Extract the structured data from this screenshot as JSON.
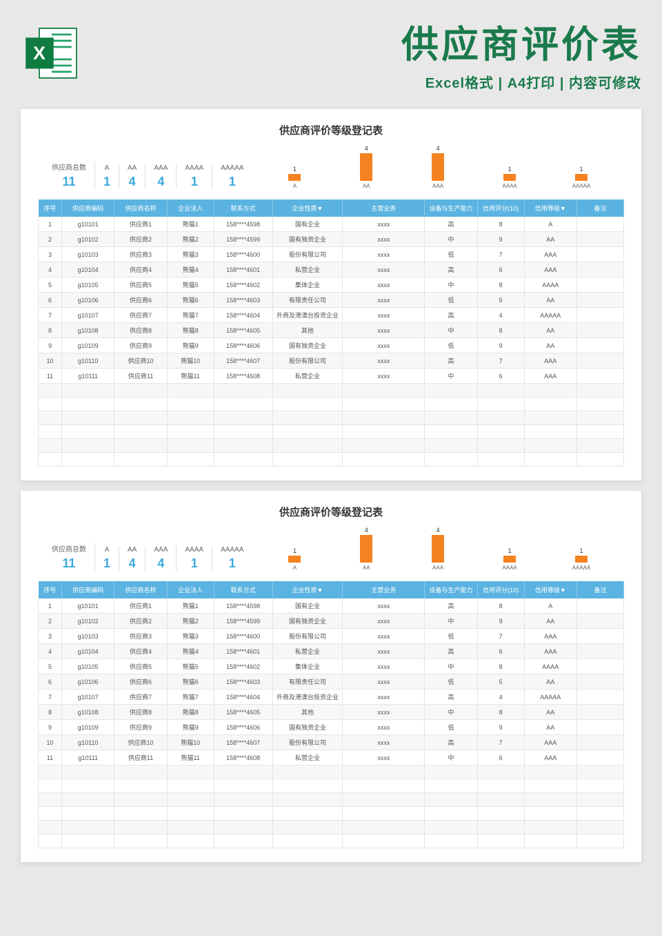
{
  "header": {
    "title": "供应商评价表",
    "subtitle": "Excel格式 | A4打印 | 内容可修改",
    "title_color": "#1a7a4c",
    "icon_color_dark": "#107c41",
    "icon_color_light": "#21a366"
  },
  "sheet": {
    "title": "供应商评价等级登记表",
    "summary": {
      "total_label": "供应商总数",
      "total_value": "11",
      "levels": [
        {
          "label": "A",
          "value": "1"
        },
        {
          "label": "AA",
          "value": "4"
        },
        {
          "label": "AAA",
          "value": "4"
        },
        {
          "label": "AAAA",
          "value": "1"
        },
        {
          "label": "AAAAA",
          "value": "1"
        }
      ],
      "value_color": "#3ba9de"
    },
    "chart": {
      "type": "bar",
      "bar_color": "#f58220",
      "max_value": 4,
      "bars": [
        {
          "label": "A",
          "value": 1
        },
        {
          "label": "AA",
          "value": 4
        },
        {
          "label": "AAA",
          "value": 4
        },
        {
          "label": "AAAA",
          "value": 1
        },
        {
          "label": "AAAAA",
          "value": 1
        }
      ]
    },
    "table": {
      "header_bg": "#5ab3e0",
      "columns": [
        "序号",
        "供应商编码",
        "供应商名称",
        "企业法人",
        "联系方式",
        "企业性质▼",
        "主营业务",
        "设备与生产能力",
        "信用评分(10)",
        "信用等级▼",
        "备注"
      ],
      "col_widths": [
        "4%",
        "9%",
        "9%",
        "8%",
        "10%",
        "12%",
        "14%",
        "9%",
        "8%",
        "9%",
        "8%"
      ],
      "rows": [
        [
          "1",
          "g10101",
          "供应商1",
          "熊猫1",
          "158****4598",
          "国有企业",
          "xxxx",
          "高",
          "8",
          "A",
          ""
        ],
        [
          "2",
          "g10102",
          "供应商2",
          "熊猫2",
          "158****4599",
          "国有独资企业",
          "xxxx",
          "中",
          "9",
          "AA",
          ""
        ],
        [
          "3",
          "g10103",
          "供应商3",
          "熊猫3",
          "158****4600",
          "股份有限公司",
          "xxxx",
          "低",
          "7",
          "AAA",
          ""
        ],
        [
          "4",
          "g10104",
          "供应商4",
          "熊猫4",
          "158****4601",
          "私营企业",
          "xxxx",
          "高",
          "6",
          "AAA",
          ""
        ],
        [
          "5",
          "g10105",
          "供应商5",
          "熊猫5",
          "158****4602",
          "集体企业",
          "xxxx",
          "中",
          "8",
          "AAAA",
          ""
        ],
        [
          "6",
          "g10106",
          "供应商6",
          "熊猫6",
          "158****4603",
          "有限责任公司",
          "xxxx",
          "低",
          "5",
          "AA",
          ""
        ],
        [
          "7",
          "g10107",
          "供应商7",
          "熊猫7",
          "158****4604",
          "外商及港澳台投资企业",
          "xxxx",
          "高",
          "4",
          "AAAAA",
          ""
        ],
        [
          "8",
          "g10108",
          "供应商8",
          "熊猫8",
          "158****4605",
          "其他",
          "xxxx",
          "中",
          "8",
          "AA",
          ""
        ],
        [
          "9",
          "g10109",
          "供应商9",
          "熊猫9",
          "158****4606",
          "国有独资企业",
          "xxxx",
          "低",
          "9",
          "AA",
          ""
        ],
        [
          "10",
          "g10110",
          "供应商10",
          "熊猫10",
          "158****4607",
          "股份有限公司",
          "xxxx",
          "高",
          "7",
          "AAA",
          ""
        ],
        [
          "11",
          "g10111",
          "供应商11",
          "熊猫11",
          "158****4608",
          "私营企业",
          "xxxx",
          "中",
          "6",
          "AAA",
          ""
        ]
      ],
      "empty_rows": 6
    }
  }
}
